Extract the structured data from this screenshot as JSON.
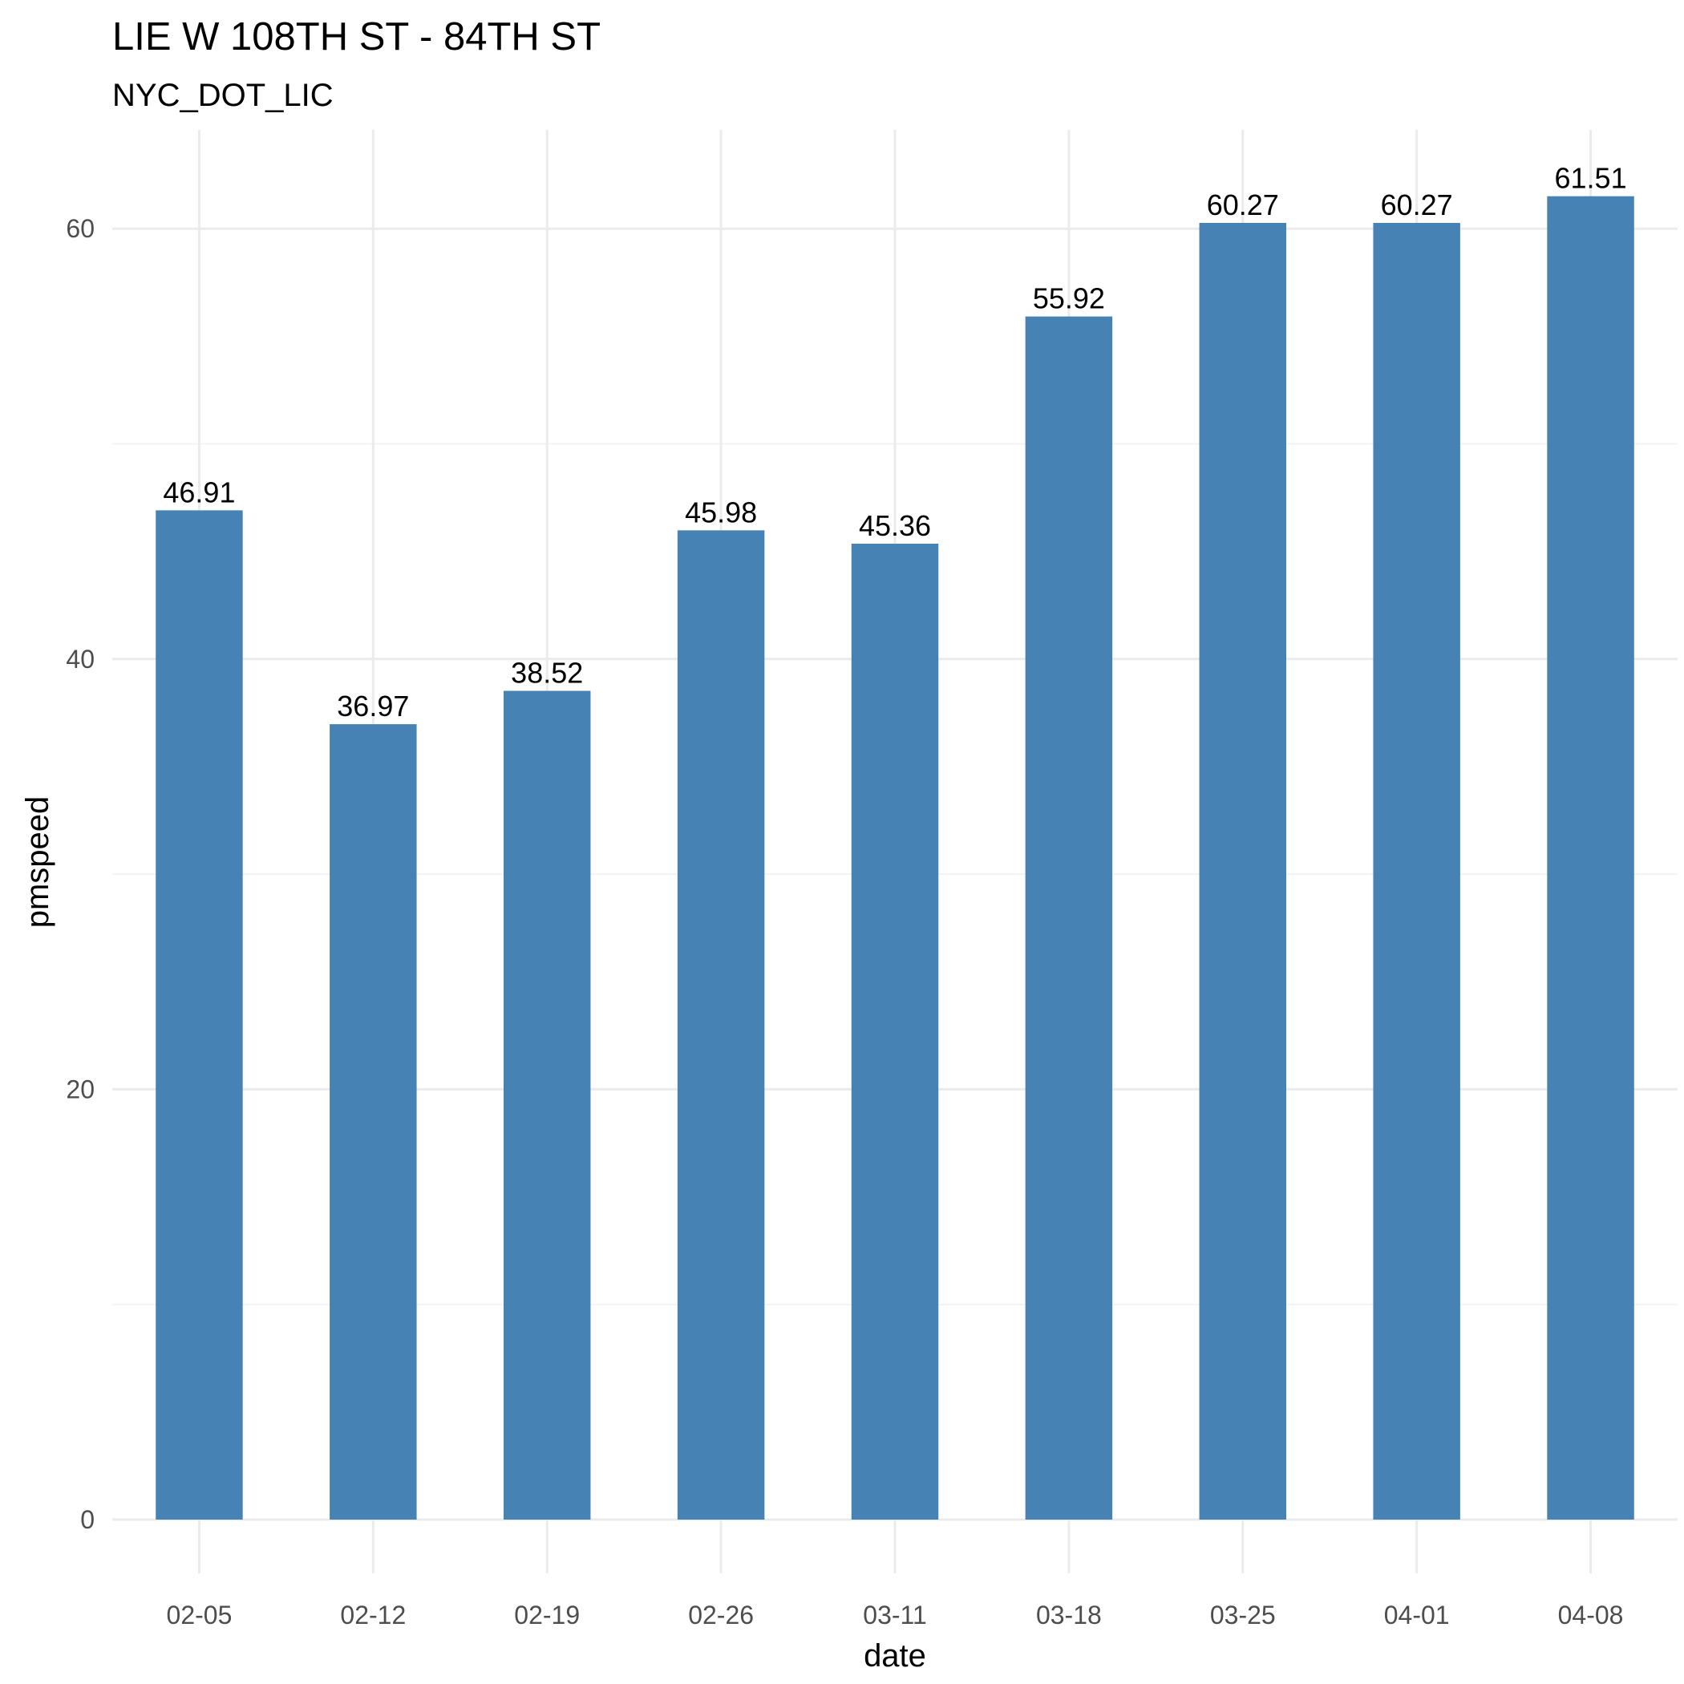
{
  "chart_data": {
    "type": "bar",
    "title": "LIE W 108TH ST - 84TH ST",
    "subtitle": "NYC_DOT_LIC",
    "xlabel": "date",
    "ylabel": "pmspeed",
    "categories": [
      "02-05",
      "02-12",
      "02-19",
      "02-26",
      "03-11",
      "03-18",
      "03-25",
      "04-01",
      "04-08"
    ],
    "values": [
      46.91,
      36.97,
      38.52,
      45.98,
      45.36,
      55.92,
      60.27,
      60.27,
      61.51
    ],
    "data_labels": [
      "46.91",
      "36.97",
      "38.52",
      "45.98",
      "45.36",
      "55.92",
      "60.27",
      "60.27",
      "61.51"
    ],
    "y_ticks": [
      0,
      20,
      40,
      60
    ],
    "y_tick_labels": [
      "0",
      "20",
      "40",
      "60"
    ],
    "ylim": [
      0,
      64.6
    ],
    "grid": true,
    "legend": "none",
    "colors": {
      "bar": "#4682B4",
      "grid_major": "#ebebeb",
      "grid_minor": "#f3f3f3",
      "tick_text": "#4d4d4d"
    }
  }
}
